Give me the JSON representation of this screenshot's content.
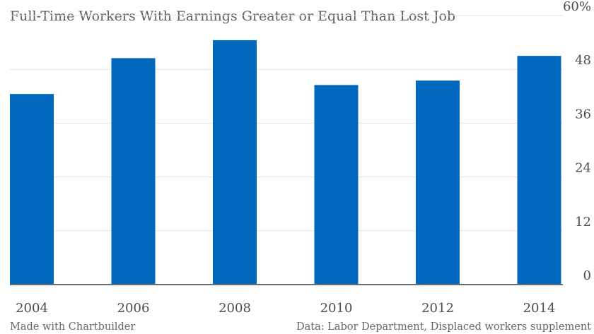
{
  "chart_data": {
    "type": "bar",
    "title": "Full-Time Workers With Earnings Greater or Equal Than Lost Job",
    "categories": [
      "2004",
      "2006",
      "2008",
      "2010",
      "2012",
      "2014"
    ],
    "values": [
      42.5,
      50.5,
      54.5,
      44.5,
      45.5,
      51.0
    ],
    "ylim": [
      0,
      60
    ],
    "yticks": [
      0,
      12,
      24,
      36,
      48,
      60
    ],
    "ytick_labels": [
      "0",
      "12",
      "24",
      "36",
      "48",
      "60%"
    ],
    "y_axis_side": "right",
    "grid": true,
    "bar_color": "#0069bd",
    "xlabel": "",
    "ylabel": ""
  },
  "footer": {
    "left": "Made with Chartbuilder",
    "right": "Data: Labor Department, Displaced workers supplement"
  }
}
